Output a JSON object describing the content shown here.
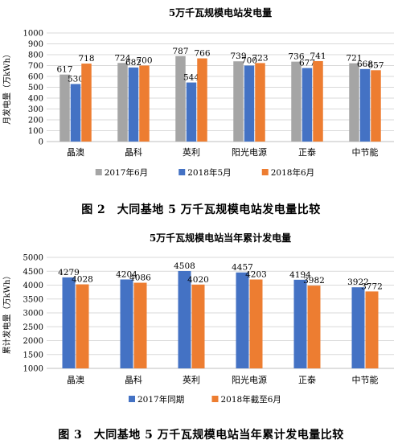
{
  "colors": {
    "gray": "#a5a5a5",
    "blue": "#4472c4",
    "orange": "#ed7d31",
    "grid": "#d9d9d9",
    "axis": "#bfbfbf"
  },
  "chart_data": [
    {
      "type": "bar",
      "title": "5万千瓦规模电站发电量",
      "ylabel": "月发电量（万kWh）",
      "xlabel": "",
      "categories": [
        "晶澳",
        "晶科",
        "英利",
        "阳光电源",
        "正泰",
        "中节能"
      ],
      "ylim": [
        0,
        1000
      ],
      "yticks": [
        0,
        100,
        200,
        300,
        400,
        500,
        600,
        700,
        800,
        900,
        1000
      ],
      "grid": true,
      "legend": "bottom",
      "series": [
        {
          "name": "2017年6月",
          "color": "#a5a5a5",
          "values": [
            617,
            724,
            787,
            739,
            736,
            721
          ]
        },
        {
          "name": "2018年5月",
          "color": "#4472c4",
          "values": [
            530,
            682,
            544,
            700,
            677,
            668
          ]
        },
        {
          "name": "2018年6月",
          "color": "#ed7d31",
          "values": [
            718,
            700,
            766,
            723,
            741,
            657
          ]
        }
      ]
    },
    {
      "type": "bar",
      "title": "5万千瓦规模电站当年累计发电量",
      "ylabel": "累计发电量（万kWh）",
      "xlabel": "",
      "categories": [
        "晶澳",
        "晶科",
        "英利",
        "阳光电源",
        "正泰",
        "中节能"
      ],
      "ylim": [
        1000,
        5000
      ],
      "yticks": [
        1000,
        1500,
        2000,
        2500,
        3000,
        3500,
        4000,
        4500,
        5000
      ],
      "grid": true,
      "legend": "bottom",
      "series": [
        {
          "name": "2017年同期",
          "color": "#4472c4",
          "values": [
            4279,
            4204,
            4508,
            4457,
            4194,
            3922
          ]
        },
        {
          "name": "2018年截至6月",
          "color": "#ed7d31",
          "values": [
            4028,
            4086,
            4020,
            4203,
            3982,
            3772
          ]
        }
      ]
    }
  ],
  "captions": {
    "fig2": "图 2　大同基地 5 万千瓦规模电站发电量比较",
    "fig3": "图 3　大同基地 5 万千瓦规模电站当年累计发电量比较"
  }
}
